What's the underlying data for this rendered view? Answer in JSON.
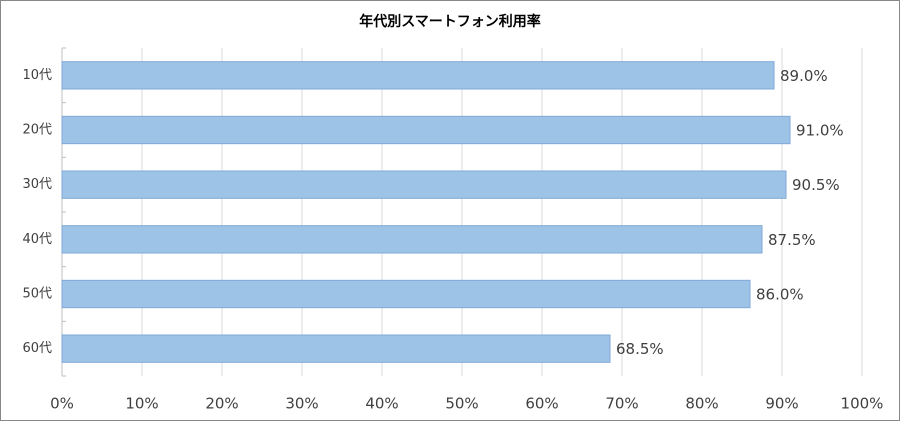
{
  "chart_data": {
    "type": "bar",
    "orientation": "horizontal",
    "title": "年代別スマートフォン利用率",
    "categories": [
      "10代",
      "20代",
      "30代",
      "40代",
      "50代",
      "60代"
    ],
    "values": [
      89.0,
      91.0,
      90.5,
      87.5,
      86.0,
      68.5
    ],
    "value_labels": [
      "89.0%",
      "91.0%",
      "90.5%",
      "87.5%",
      "86.0%",
      "68.5%"
    ],
    "color": "#9dc3e6",
    "xlim": [
      0,
      100
    ],
    "xticks": [
      {
        "value": 0,
        "label": "0%"
      },
      {
        "value": 10,
        "label": "10%"
      },
      {
        "value": 20,
        "label": "20%"
      },
      {
        "value": 30,
        "label": "30%"
      },
      {
        "value": 40,
        "label": "40%"
      },
      {
        "value": 50,
        "label": "50%"
      },
      {
        "value": 60,
        "label": "60%"
      },
      {
        "value": 70,
        "label": "70%"
      },
      {
        "value": 80,
        "label": "80%"
      },
      {
        "value": 90,
        "label": "90%"
      },
      {
        "value": 100,
        "label": "100%"
      }
    ],
    "grid": true
  }
}
